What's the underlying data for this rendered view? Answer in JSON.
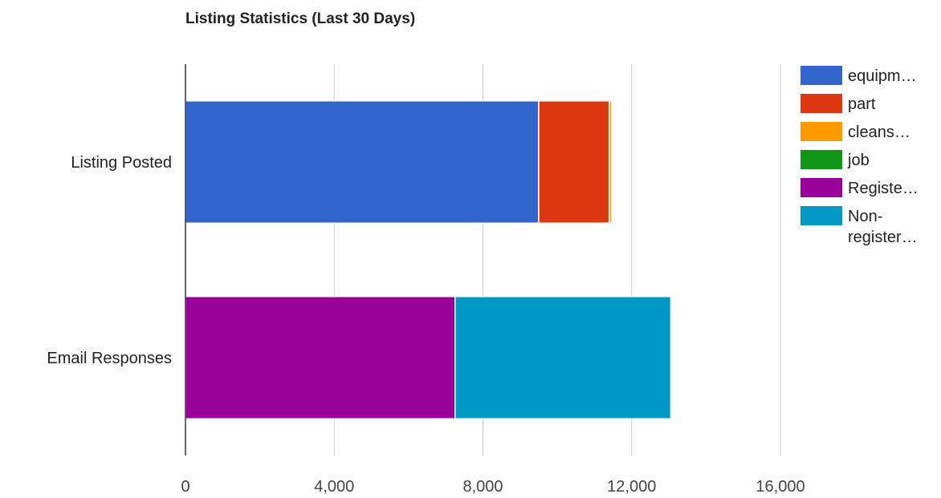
{
  "chart_data": {
    "type": "bar",
    "orientation": "horizontal",
    "stacked": true,
    "title": "Listing Statistics (Last 30 Days)",
    "xlabel": "",
    "ylabel": "",
    "xlim": [
      0,
      16000
    ],
    "x_ticks": [
      0,
      4000,
      8000,
      12000,
      16000
    ],
    "x_tick_labels": [
      "0",
      "4,000",
      "8,000",
      "12,000",
      "16,000"
    ],
    "categories": [
      "Listing Posted",
      "Email Responses"
    ],
    "grid": "vertical",
    "legend_position": "right",
    "series": [
      {
        "name": "equipm…",
        "color": "#3366cc",
        "values": [
          9500,
          0
        ]
      },
      {
        "name": "part",
        "color": "#dc3912",
        "values": [
          1900,
          0
        ]
      },
      {
        "name": "cleans…",
        "color": "#ff9900",
        "values": [
          60,
          0
        ]
      },
      {
        "name": "job",
        "color": "#109618",
        "values": [
          30,
          0
        ]
      },
      {
        "name": "Registe…",
        "color": "#990099",
        "values": [
          0,
          7250
        ]
      },
      {
        "name": "Non-registered…",
        "legend_lines": [
          "Non-",
          "register…"
        ],
        "color": "#0099c6",
        "values": [
          0,
          5800
        ]
      }
    ]
  }
}
